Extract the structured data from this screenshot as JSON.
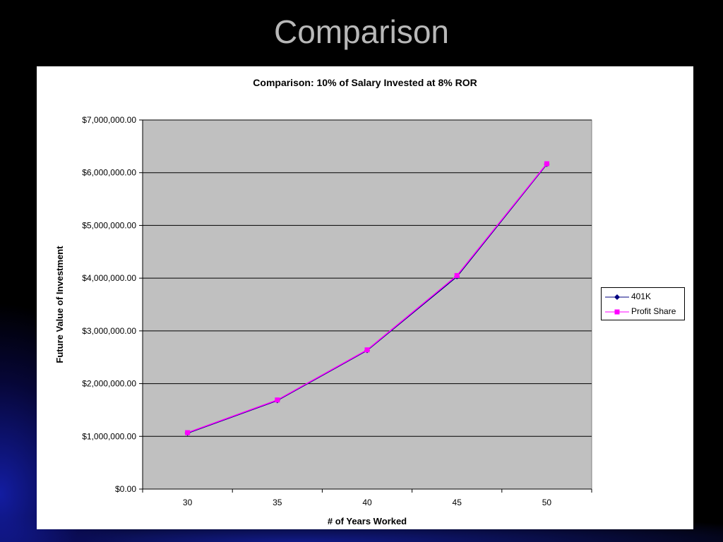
{
  "slide": {
    "title": "Comparison"
  },
  "colors": {
    "series_401k": "#000080",
    "series_profit": "#ff00ff",
    "plot_bg": "#c0c0c0",
    "slide_bg": "#000000"
  },
  "chart_data": {
    "type": "line",
    "title": "Comparison: 10% of Salary Invested at 8% ROR",
    "xlabel": "# of Years Worked",
    "ylabel": "Future Value of Investment",
    "categories": [
      "30",
      "35",
      "40",
      "45",
      "50"
    ],
    "y_ticks": [
      "$0.00",
      "$1,000,000.00",
      "$2,000,000.00",
      "$3,000,000.00",
      "$4,000,000.00",
      "$5,000,000.00",
      "$6,000,000.00",
      "$7,000,000.00"
    ],
    "ylim": [
      0,
      7000000
    ],
    "grid": true,
    "legend_position": "right",
    "series": [
      {
        "name": "401K",
        "marker": "diamond",
        "values": [
          1060000,
          1680000,
          2630000,
          4030000,
          6160000
        ]
      },
      {
        "name": "Profit Share",
        "marker": "square",
        "values": [
          1070000,
          1690000,
          2640000,
          4050000,
          6170000
        ]
      }
    ]
  }
}
